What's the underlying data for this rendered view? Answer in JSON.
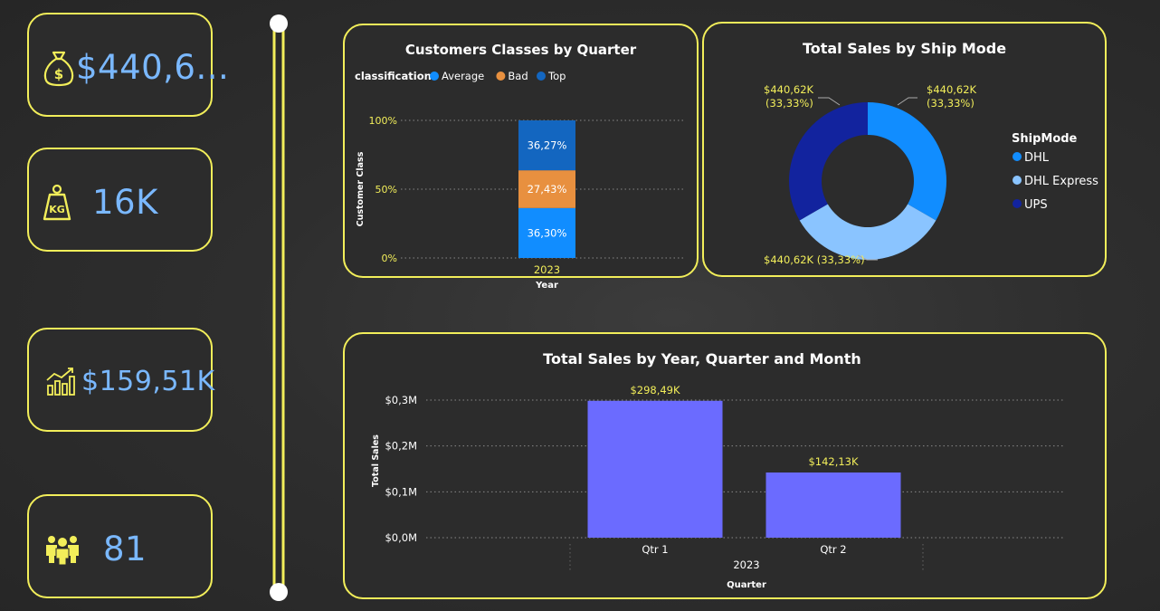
{
  "colors": {
    "accent": "#f2ee5a",
    "kpi_text": "#7ab8ff",
    "avg": "#118dff",
    "bad": "#e8903f",
    "top": "#1366c0",
    "dhl": "#118dff",
    "dhl_express": "#8ac4ff",
    "ups": "#12239e",
    "bar": "#6b6bff"
  },
  "kpis": [
    {
      "icon": "money-bag-icon",
      "value": "$440,6..."
    },
    {
      "icon": "weight-kg-icon",
      "value": "16K"
    },
    {
      "icon": "growth-chart-icon",
      "value": "$159,51K"
    },
    {
      "icon": "people-group-icon",
      "value": "81"
    }
  ],
  "chart_data": [
    {
      "type": "bar",
      "stacked": "100%",
      "title": "Customers Classes by Quarter",
      "legend_title": "classification",
      "legend_placement": "top-left",
      "xlabel": "Year",
      "ylabel": "Customer Class",
      "categories": [
        "2023"
      ],
      "yticks": [
        "0%",
        "50%",
        "100%"
      ],
      "ylim": [
        0,
        100
      ],
      "grid": true,
      "series": [
        {
          "name": "Average",
          "values": [
            36.3
          ],
          "label": "36,30%",
          "color": "#118dff"
        },
        {
          "name": "Bad",
          "values": [
            27.43
          ],
          "label": "27,43%",
          "color": "#e8903f"
        },
        {
          "name": "Top",
          "values": [
            36.27
          ],
          "label": "36,27%",
          "color": "#1366c0"
        }
      ]
    },
    {
      "type": "pie",
      "donut": true,
      "title": "Total Sales by Ship Mode",
      "legend_title": "ShipMode",
      "legend_placement": "right",
      "slices": [
        {
          "name": "DHL",
          "value": 440.62,
          "label_line1": "$440,62K",
          "label_line2": "(33,33%)",
          "color": "#118dff"
        },
        {
          "name": "DHL Express",
          "value": 440.62,
          "label_line1": "$440,62K (33,33%)",
          "label_line2": "",
          "color": "#8ac4ff"
        },
        {
          "name": "UPS",
          "value": 440.62,
          "label_line1": "$440,62K",
          "label_line2": "(33,33%)",
          "color": "#12239e"
        }
      ]
    },
    {
      "type": "bar",
      "title": "Total Sales by Year, Quarter and Month",
      "xlabel": "Quarter",
      "ylabel": "Total Sales",
      "group_label": "2023",
      "categories": [
        "Qtr 1",
        "Qtr 2"
      ],
      "values": [
        298.49,
        142.13
      ],
      "value_labels": [
        "$298,49K",
        "$142,13K"
      ],
      "yticks": [
        "$0,0M",
        "$0,1M",
        "$0,2M",
        "$0,3M"
      ],
      "ylim": [
        0,
        300
      ],
      "grid": true
    }
  ]
}
